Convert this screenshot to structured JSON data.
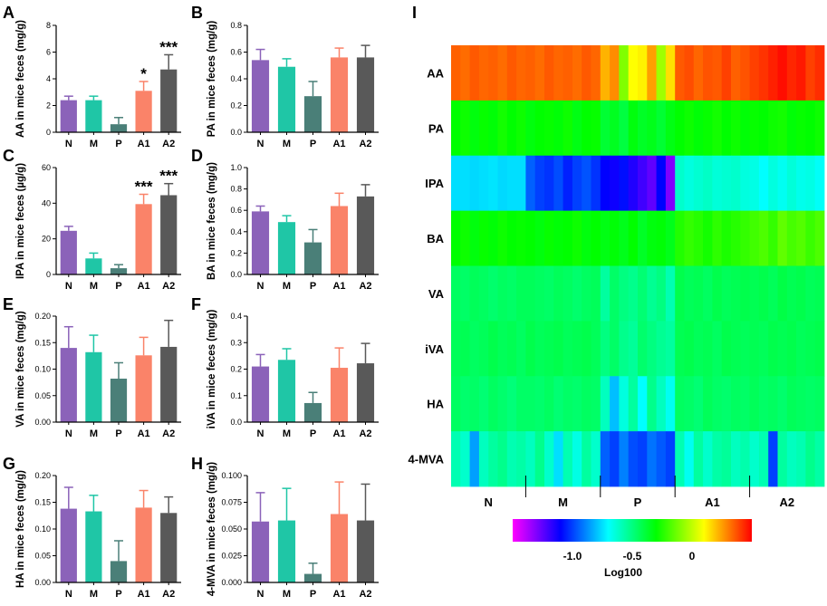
{
  "colors": {
    "N": "#8B62B9",
    "M": "#1FC6A6",
    "P": "#4A7F78",
    "A1": "#FA8369",
    "A2": "#595959",
    "colorbar": [
      "#ff00ff",
      "#0000ff",
      "#00ffff",
      "#00ff00",
      "#ffff00",
      "#ff0000"
    ]
  },
  "chart_data": [
    {
      "type": "bar",
      "panel": "A",
      "ylabel": "AA in mice feces (mg/g)",
      "categories": [
        "N",
        "M",
        "P",
        "A1",
        "A2"
      ],
      "values": [
        2.4,
        2.4,
        0.6,
        3.1,
        4.7
      ],
      "errors": [
        0.3,
        0.3,
        0.5,
        0.7,
        1.1
      ],
      "significance": [
        "",
        "",
        "",
        "*",
        "***"
      ],
      "ylim": [
        0,
        8
      ],
      "yticks": [
        "0",
        "2",
        "4",
        "6",
        "8"
      ],
      "ytick_values": [
        0,
        2,
        4,
        6,
        8
      ]
    },
    {
      "type": "bar",
      "panel": "B",
      "ylabel": "PA in mice feces (mg/g)",
      "categories": [
        "N",
        "M",
        "P",
        "A1",
        "A2"
      ],
      "values": [
        0.54,
        0.49,
        0.27,
        0.56,
        0.56
      ],
      "errors": [
        0.08,
        0.06,
        0.11,
        0.07,
        0.09
      ],
      "significance": [
        "",
        "",
        "",
        "",
        ""
      ],
      "ylim": [
        0,
        0.8
      ],
      "yticks": [
        "0.0",
        "0.2",
        "0.4",
        "0.6",
        "0.8"
      ],
      "ytick_values": [
        0,
        0.2,
        0.4,
        0.6,
        0.8
      ]
    },
    {
      "type": "bar",
      "panel": "C",
      "ylabel": "IPA in mice feces (µg/g)",
      "categories": [
        "N",
        "M",
        "P",
        "A1",
        "A2"
      ],
      "values": [
        24.5,
        9,
        3.5,
        39.5,
        44.5
      ],
      "errors": [
        2.5,
        3,
        2,
        5.5,
        6.5
      ],
      "significance": [
        "",
        "",
        "",
        "***",
        "***"
      ],
      "ylim": [
        0,
        60
      ],
      "yticks": [
        "0",
        "20",
        "40",
        "60"
      ],
      "ytick_values": [
        0,
        20,
        40,
        60
      ]
    },
    {
      "type": "bar",
      "panel": "D",
      "ylabel": "BA in mice feces (mg/g)",
      "categories": [
        "N",
        "M",
        "P",
        "A1",
        "A2"
      ],
      "values": [
        0.59,
        0.49,
        0.3,
        0.64,
        0.73
      ],
      "errors": [
        0.05,
        0.06,
        0.12,
        0.12,
        0.11
      ],
      "significance": [
        "",
        "",
        "",
        "",
        ""
      ],
      "ylim": [
        0,
        1.0
      ],
      "yticks": [
        "0.0",
        "0.2",
        "0.4",
        "0.6",
        "0.8",
        "1.0"
      ],
      "ytick_values": [
        0,
        0.2,
        0.4,
        0.6,
        0.8,
        1.0
      ]
    },
    {
      "type": "bar",
      "panel": "E",
      "ylabel": "VA in mice feces (mg/g)",
      "categories": [
        "N",
        "M",
        "P",
        "A1",
        "A2"
      ],
      "values": [
        0.14,
        0.132,
        0.082,
        0.126,
        0.142
      ],
      "errors": [
        0.04,
        0.032,
        0.03,
        0.034,
        0.05
      ],
      "significance": [
        "",
        "",
        "",
        "",
        ""
      ],
      "ylim": [
        0,
        0.2
      ],
      "yticks": [
        "0.00",
        "0.05",
        "0.10",
        "0.15",
        "0.20"
      ],
      "ytick_values": [
        0,
        0.05,
        0.1,
        0.15,
        0.2
      ]
    },
    {
      "type": "bar",
      "panel": "F",
      "ylabel": "iVA in mice feces (mg/g)",
      "categories": [
        "N",
        "M",
        "P",
        "A1",
        "A2"
      ],
      "values": [
        0.21,
        0.235,
        0.072,
        0.205,
        0.222
      ],
      "errors": [
        0.045,
        0.042,
        0.04,
        0.075,
        0.075
      ],
      "significance": [
        "",
        "",
        "",
        "",
        ""
      ],
      "ylim": [
        0,
        0.4
      ],
      "yticks": [
        "0.0",
        "0.1",
        "0.2",
        "0.3",
        "0.4"
      ],
      "ytick_values": [
        0,
        0.1,
        0.2,
        0.3,
        0.4
      ]
    },
    {
      "type": "bar",
      "panel": "G",
      "ylabel": "HA in mice feces (mg/g)",
      "categories": [
        "N",
        "M",
        "P",
        "A1",
        "A2"
      ],
      "values": [
        0.138,
        0.133,
        0.04,
        0.14,
        0.13
      ],
      "errors": [
        0.04,
        0.03,
        0.038,
        0.032,
        0.03
      ],
      "significance": [
        "",
        "",
        "",
        "",
        ""
      ],
      "ylim": [
        0,
        0.2
      ],
      "yticks": [
        "0.00",
        "0.05",
        "0.10",
        "0.15",
        "0.20"
      ],
      "ytick_values": [
        0,
        0.05,
        0.1,
        0.15,
        0.2
      ]
    },
    {
      "type": "bar",
      "panel": "H",
      "ylabel": "4-MVA in mice feces (mg/g)",
      "categories": [
        "N",
        "M",
        "P",
        "A1",
        "A2"
      ],
      "values": [
        0.057,
        0.058,
        0.008,
        0.064,
        0.058
      ],
      "errors": [
        0.027,
        0.03,
        0.01,
        0.03,
        0.034
      ],
      "significance": [
        "",
        "",
        "",
        "",
        ""
      ],
      "ylim": [
        0,
        0.1
      ],
      "yticks": [
        "0.000",
        "0.025",
        "0.050",
        "0.075",
        "0.100"
      ],
      "ytick_values": [
        0,
        0.025,
        0.05,
        0.075,
        0.1
      ]
    },
    {
      "type": "heatmap",
      "panel": "I",
      "rows": [
        "AA",
        "PA",
        "IPA",
        "BA",
        "VA",
        "iVA",
        "HA",
        "4-MVA"
      ],
      "groups": [
        "N",
        "M",
        "P",
        "A1",
        "A2"
      ],
      "columns_per_group": 8,
      "values": [
        [
          0.35,
          0.33,
          0.36,
          0.34,
          0.35,
          0.33,
          0.36,
          0.34,
          0.35,
          0.33,
          0.36,
          0.34,
          0.35,
          0.33,
          0.36,
          0.34,
          0.22,
          0.28,
          -0.1,
          0.1,
          0.12,
          0.25,
          -0.05,
          0.15,
          0.36,
          0.38,
          0.34,
          0.37,
          0.36,
          0.4,
          0.35,
          0.37,
          0.4,
          0.42,
          0.45,
          0.48,
          0.44,
          0.46,
          0.4,
          0.43
        ],
        [
          -0.3,
          -0.28,
          -0.32,
          -0.29,
          -0.31,
          -0.27,
          -0.3,
          -0.28,
          -0.32,
          -0.3,
          -0.29,
          -0.31,
          -0.28,
          -0.33,
          -0.3,
          -0.29,
          -0.38,
          -0.35,
          -0.4,
          -0.32,
          -0.36,
          -0.34,
          -0.38,
          -0.33,
          -0.3,
          -0.28,
          -0.31,
          -0.29,
          -0.27,
          -0.3,
          -0.28,
          -0.31,
          -0.29,
          -0.3,
          -0.28,
          -0.27,
          -0.31,
          -0.29,
          -0.3,
          -0.28
        ],
        [
          -0.75,
          -0.75,
          -0.76,
          -0.75,
          -0.74,
          -0.76,
          -0.75,
          -0.75,
          -0.95,
          -1.0,
          -1.02,
          -0.98,
          -1.05,
          -1.0,
          -0.97,
          -1.02,
          -1.1,
          -1.12,
          -1.08,
          -1.15,
          -1.2,
          -1.25,
          -1.1,
          -1.3,
          -0.62,
          -0.65,
          -0.63,
          -0.61,
          -0.64,
          -0.63,
          -0.62,
          -0.65,
          -0.66,
          -0.7,
          -0.65,
          -0.68,
          -0.64,
          -0.67,
          -0.66,
          -0.69
        ],
        [
          -0.3,
          -0.28,
          -0.32,
          -0.29,
          -0.31,
          -0.28,
          -0.3,
          -0.29,
          -0.3,
          -0.32,
          -0.29,
          -0.31,
          -0.3,
          -0.28,
          -0.32,
          -0.3,
          -0.33,
          -0.31,
          -0.34,
          -0.3,
          -0.36,
          -0.32,
          -0.31,
          -0.34,
          -0.25,
          -0.22,
          -0.24,
          -0.27,
          -0.23,
          -0.26,
          -0.24,
          -0.22,
          -0.2,
          -0.18,
          -0.22,
          -0.15,
          -0.19,
          -0.17,
          -0.21,
          -0.18
        ],
        [
          -0.45,
          -0.46,
          -0.44,
          -0.45,
          -0.47,
          -0.45,
          -0.46,
          -0.44,
          -0.44,
          -0.45,
          -0.46,
          -0.44,
          -0.45,
          -0.47,
          -0.45,
          -0.44,
          -0.55,
          -0.46,
          -0.5,
          -0.52,
          -0.48,
          -0.53,
          -0.5,
          -0.58,
          -0.42,
          -0.44,
          -0.43,
          -0.45,
          -0.42,
          -0.44,
          -0.43,
          -0.42,
          -0.43,
          -0.42,
          -0.44,
          -0.41,
          -0.43,
          -0.42,
          -0.44,
          -0.43
        ],
        [
          -0.44,
          -0.43,
          -0.45,
          -0.44,
          -0.42,
          -0.44,
          -0.43,
          -0.45,
          -0.42,
          -0.44,
          -0.43,
          -0.42,
          -0.44,
          -0.43,
          -0.42,
          -0.44,
          -0.5,
          -0.46,
          -0.52,
          -0.54,
          -0.47,
          -0.5,
          -0.53,
          -0.55,
          -0.43,
          -0.42,
          -0.44,
          -0.43,
          -0.45,
          -0.42,
          -0.43,
          -0.44,
          -0.43,
          -0.44,
          -0.42,
          -0.43,
          -0.42,
          -0.44,
          -0.43,
          -0.42
        ],
        [
          -0.45,
          -0.47,
          -0.46,
          -0.48,
          -0.45,
          -0.47,
          -0.49,
          -0.46,
          -0.46,
          -0.47,
          -0.45,
          -0.48,
          -0.46,
          -0.47,
          -0.45,
          -0.46,
          -0.6,
          -0.8,
          -0.65,
          -0.55,
          -0.7,
          -0.52,
          -0.6,
          -0.68,
          -0.45,
          -0.46,
          -0.48,
          -0.44,
          -0.46,
          -0.47,
          -0.45,
          -0.46,
          -0.44,
          -0.46,
          -0.45,
          -0.47,
          -0.44,
          -0.45,
          -0.46,
          -0.45
        ],
        [
          -0.58,
          -0.62,
          -0.85,
          -0.6,
          -0.55,
          -0.52,
          -0.58,
          -0.56,
          -0.6,
          -0.52,
          -0.62,
          -0.75,
          -0.58,
          -0.66,
          -0.55,
          -0.62,
          -0.95,
          -1.0,
          -0.9,
          -0.98,
          -1.0,
          -0.92,
          -0.96,
          -1.0,
          -0.58,
          -0.68,
          -0.55,
          -0.62,
          -0.56,
          -0.54,
          -0.6,
          -0.57,
          -0.62,
          -0.58,
          -1.0,
          -0.55,
          -0.6,
          -0.58,
          -0.52,
          -0.56
        ]
      ],
      "colorbar_range": [
        -1.5,
        0.5
      ],
      "colorbar_ticks": [
        "-1.0",
        "-0.5",
        "0"
      ],
      "colorbar_tick_values": [
        -1.0,
        -0.5,
        0
      ],
      "colorbar_label": "Log100"
    }
  ]
}
